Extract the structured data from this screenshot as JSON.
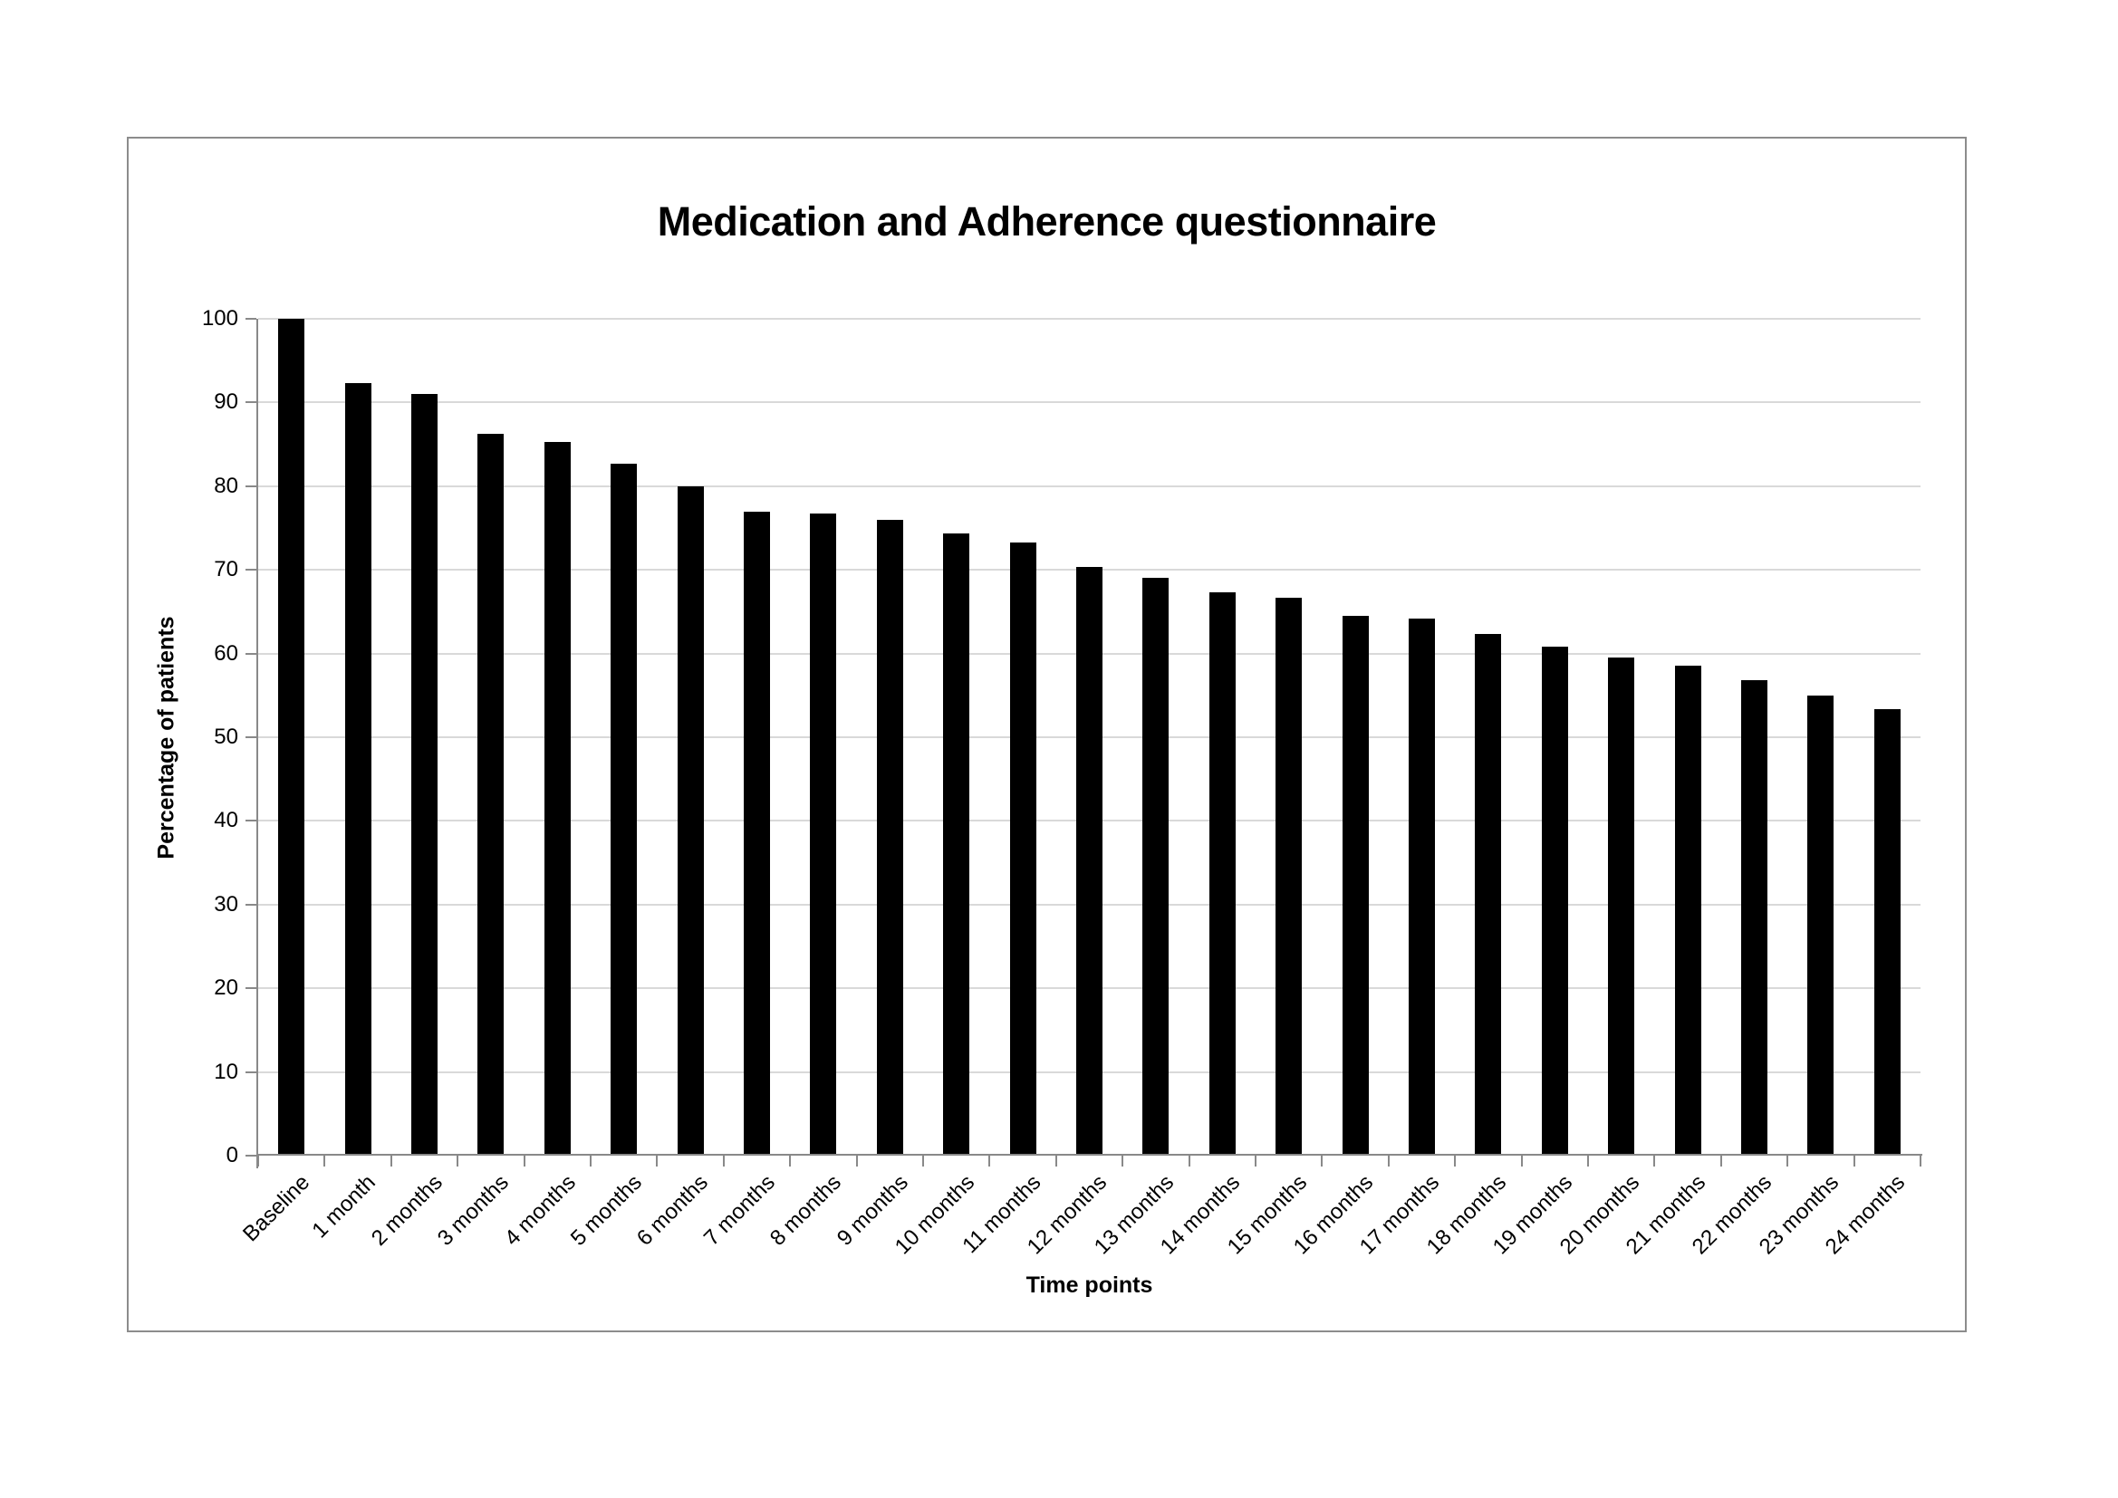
{
  "chart_data": {
    "type": "bar",
    "title": "Medication and Adherence questionnaire",
    "xlabel": "Time points",
    "ylabel": "Percentage of patients",
    "categories": [
      "Baseline",
      "1 month",
      "2 months",
      "3 months",
      "4 months",
      "5 months",
      "6 months",
      "7 months",
      "8 months",
      "9 months",
      "10 months",
      "11 months",
      "12 months",
      "13 months",
      "14 months",
      "15 months",
      "16 months",
      "17 months",
      "18 months",
      "19 months",
      "20 months",
      "21 months",
      "22 months",
      "23 months",
      "24 months"
    ],
    "values": [
      100,
      92.3,
      91,
      86.3,
      85.3,
      82.7,
      80,
      77,
      76.7,
      76,
      74.3,
      73.3,
      70.3,
      69,
      67.3,
      66.7,
      64.5,
      64.2,
      62.3,
      60.8,
      59.5,
      58.5,
      56.8,
      55,
      53.4
    ],
    "yticks": [
      0,
      10,
      20,
      30,
      40,
      50,
      60,
      70,
      80,
      90,
      100
    ],
    "ylim": [
      0,
      100
    ],
    "grid": "horizontal",
    "legend": "none",
    "bar_color": "#000000",
    "gridline_color": "#D9D9D9",
    "axis_color": "#898989",
    "border_color": "#8C8C8C",
    "background_color": "#FFFFFF"
  }
}
